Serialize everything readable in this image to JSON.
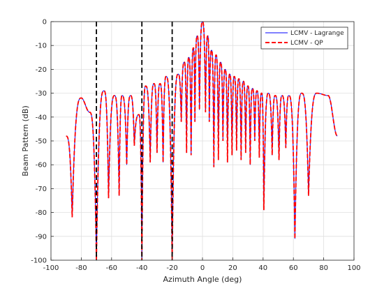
{
  "chart_data": {
    "type": "line",
    "xlabel": "Azimuth Angle (deg)",
    "ylabel": "Beam Pattern (dB)",
    "xlim": [
      -100,
      100
    ],
    "ylim": [
      -100,
      0
    ],
    "xticks": [
      -100,
      -80,
      -60,
      -40,
      -20,
      0,
      20,
      40,
      60,
      80,
      100
    ],
    "yticks": [
      0,
      -10,
      -20,
      -30,
      -40,
      -50,
      -60,
      -70,
      -80,
      -90,
      -100
    ],
    "xtick_labels": [
      "-100",
      "-80",
      "-60",
      "-40",
      "-20",
      "0",
      "20",
      "40",
      "60",
      "80",
      "100"
    ],
    "ytick_labels": [
      "0",
      "-10",
      "-20",
      "-30",
      "-40",
      "-50",
      "-60",
      "-70",
      "-80",
      "-90",
      "-100"
    ],
    "grid": true,
    "legend_position": "top-right",
    "series": [
      {
        "name": "LCMV - Lagrange",
        "color": "#0000ff",
        "dash": "solid"
      },
      {
        "name": "LCMV - QP",
        "color": "#ff0000",
        "dash": "dashed"
      }
    ],
    "constraint_lines": [
      {
        "x": -70,
        "style": "dashed"
      },
      {
        "x": -40,
        "style": "dashed"
      },
      {
        "x": -20,
        "style": "dashed"
      }
    ],
    "lobe_peaks": [
      [
        -90,
        -48
      ],
      [
        -80,
        -32
      ],
      [
        -74.5,
        -38
      ],
      [
        -65,
        -29
      ],
      [
        -58,
        -31
      ],
      [
        -53,
        -31
      ],
      [
        -47.5,
        -31
      ],
      [
        -42,
        -39
      ],
      [
        -37.5,
        -27
      ],
      [
        -32,
        -26
      ],
      [
        -28,
        -26
      ],
      [
        -24,
        -23
      ],
      [
        -16,
        -22
      ],
      [
        -12,
        -17
      ],
      [
        -9,
        -15
      ],
      [
        -6,
        -11
      ],
      [
        -3.5,
        -6
      ],
      [
        0,
        0
      ],
      [
        3.5,
        -6
      ],
      [
        6,
        -12
      ],
      [
        9,
        -14
      ],
      [
        12,
        -17
      ],
      [
        15,
        -20
      ],
      [
        18,
        -22
      ],
      [
        21,
        -23
      ],
      [
        24,
        -24
      ],
      [
        27,
        -25
      ],
      [
        30,
        -27
      ],
      [
        33,
        -28
      ],
      [
        36,
        -29
      ],
      [
        39,
        -30
      ],
      [
        43.5,
        -30
      ],
      [
        48,
        -31
      ],
      [
        52.5,
        -31
      ],
      [
        57,
        -31
      ],
      [
        65.5,
        -30
      ],
      [
        75.5,
        -30
      ],
      [
        83,
        -31
      ],
      [
        89,
        -48
      ]
    ],
    "nulls": [
      [
        -86,
        -82
      ],
      [
        -70,
        -100
      ],
      [
        -62,
        -74
      ],
      [
        -55,
        -73
      ],
      [
        -50,
        -60
      ],
      [
        -45,
        -52
      ],
      [
        -40,
        -100
      ],
      [
        -34.5,
        -59
      ],
      [
        -30,
        -55
      ],
      [
        -26,
        -59
      ],
      [
        -20,
        -100
      ],
      [
        -14,
        -42
      ],
      [
        -10.5,
        -55
      ],
      [
        -7.5,
        -56
      ],
      [
        -5,
        -42
      ],
      [
        -2,
        -37
      ],
      [
        2,
        -38
      ],
      [
        4.5,
        -42
      ],
      [
        7.5,
        -61
      ],
      [
        10.5,
        -58
      ],
      [
        13.5,
        -50
      ],
      [
        16.5,
        -59
      ],
      [
        19.5,
        -56
      ],
      [
        22.5,
        -54
      ],
      [
        25.5,
        -58
      ],
      [
        28.5,
        -55
      ],
      [
        31.5,
        -60
      ],
      [
        34.5,
        -50
      ],
      [
        37.5,
        -57
      ],
      [
        40.5,
        -79
      ],
      [
        46,
        -56
      ],
      [
        50.5,
        -58
      ],
      [
        55,
        -53
      ],
      [
        61,
        -91
      ],
      [
        70,
        -73
      ]
    ]
  }
}
